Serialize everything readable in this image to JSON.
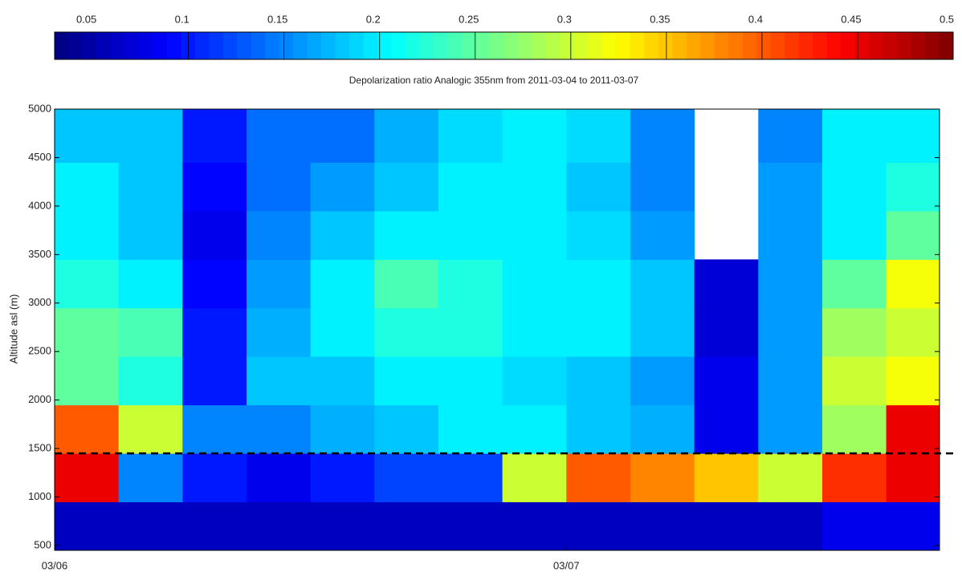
{
  "chart_data": {
    "type": "heatmap",
    "title": "Depolarization ratio Analogic 355nm from 2011-03-04 to 2011-03-07",
    "y_label": "Altitude asl (m)",
    "colorbar": {
      "clim": [
        0.03,
        0.5
      ],
      "ticks": [
        0.05,
        0.1,
        0.15,
        0.2,
        0.25,
        0.3,
        0.35,
        0.4,
        0.45,
        0.5
      ],
      "colormap": "jet"
    },
    "xlim": [
      0,
      41.5
    ],
    "xticks": [
      {
        "value": 0,
        "label": "03/06"
      },
      {
        "value": 24,
        "label": "03/07"
      }
    ],
    "ylim": [
      450,
      5000
    ],
    "yticks": [
      500,
      1000,
      1500,
      2000,
      2500,
      3000,
      3500,
      4000,
      4500,
      5000
    ],
    "x": [
      1.5,
      4.5,
      7.5,
      10.5,
      13.5,
      16.5,
      19.5,
      22.5,
      25.5,
      28.5,
      31.5,
      34.5,
      37.5,
      40.5
    ],
    "y": [
      700,
      1200,
      1700,
      2200,
      2700,
      3200,
      3700,
      4200,
      4700
    ],
    "z": [
      [
        0.06,
        0.06,
        0.06,
        0.06,
        0.06,
        0.06,
        0.06,
        0.06,
        0.06,
        0.06,
        0.06,
        0.06,
        0.08,
        0.08
      ],
      [
        0.45,
        0.15,
        0.1,
        0.08,
        0.1,
        0.12,
        0.12,
        0.3,
        0.4,
        0.38,
        0.35,
        0.3,
        0.42,
        0.45
      ],
      [
        0.4,
        0.3,
        0.15,
        0.15,
        0.17,
        0.18,
        0.2,
        0.2,
        0.18,
        0.17,
        0.08,
        0.16,
        0.28,
        0.45
      ],
      [
        0.25,
        0.22,
        0.1,
        0.18,
        0.18,
        0.2,
        0.2,
        0.19,
        0.18,
        0.16,
        0.08,
        0.16,
        0.3,
        0.32
      ],
      [
        0.25,
        0.24,
        0.1,
        0.17,
        0.2,
        0.22,
        0.22,
        0.2,
        0.2,
        0.18,
        0.07,
        0.16,
        0.28,
        0.3
      ],
      [
        0.22,
        0.2,
        0.09,
        0.16,
        0.2,
        0.24,
        0.22,
        0.2,
        0.2,
        0.18,
        0.07,
        0.16,
        0.25,
        0.32
      ],
      [
        0.2,
        0.18,
        0.08,
        0.15,
        0.18,
        0.2,
        0.2,
        0.2,
        0.19,
        0.16,
        null,
        0.16,
        0.2,
        0.25
      ],
      [
        0.2,
        0.18,
        0.09,
        0.14,
        0.16,
        0.18,
        0.2,
        0.2,
        0.18,
        0.15,
        null,
        0.16,
        0.2,
        0.22
      ],
      [
        0.18,
        0.18,
        0.1,
        0.14,
        0.14,
        0.17,
        0.19,
        0.2,
        0.19,
        0.15,
        null,
        0.15,
        0.2,
        0.2
      ]
    ],
    "reference_line": 1450
  }
}
